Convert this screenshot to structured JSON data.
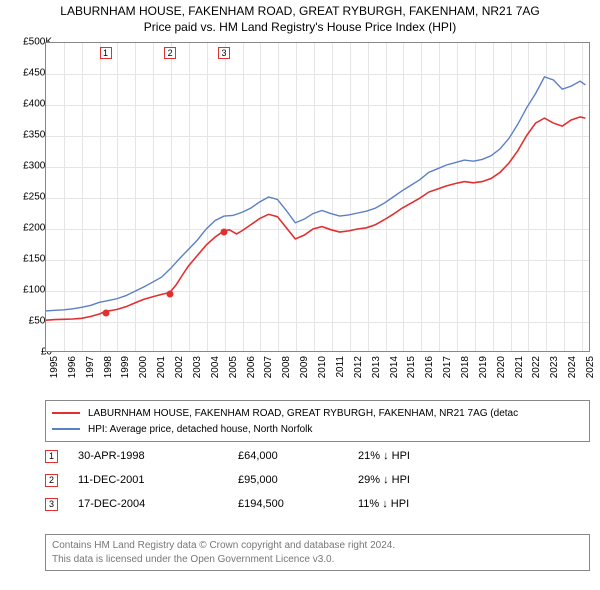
{
  "title": {
    "line1": "LABURNHAM HOUSE, FAKENHAM ROAD, GREAT RYBURGH, FAKENHAM, NR21 7AG",
    "line2": "Price paid vs. HM Land Registry's House Price Index (HPI)"
  },
  "chart": {
    "type": "line",
    "x_min": 1995,
    "x_max": 2025.5,
    "y_min": 0,
    "y_max": 500000,
    "y_ticks": [
      0,
      50000,
      100000,
      150000,
      200000,
      250000,
      300000,
      350000,
      400000,
      450000,
      500000
    ],
    "y_tick_labels": [
      "£0",
      "£50K",
      "£100K",
      "£150K",
      "£200K",
      "£250K",
      "£300K",
      "£350K",
      "£400K",
      "£450K",
      "£500K"
    ],
    "x_ticks": [
      1995,
      1996,
      1997,
      1998,
      1999,
      2000,
      2001,
      2002,
      2003,
      2004,
      2005,
      2006,
      2007,
      2008,
      2009,
      2010,
      2011,
      2012,
      2013,
      2014,
      2015,
      2016,
      2017,
      2018,
      2019,
      2020,
      2021,
      2022,
      2023,
      2024,
      2025
    ],
    "background_color": "#ffffff",
    "grid_color": "#e5e5e5",
    "border_color": "#888888",
    "series": [
      {
        "name": "property",
        "label": "LABURNHAM HOUSE, FAKENHAM ROAD, GREAT RYBURGH, FAKENHAM, NR21 7AG (detac",
        "color": "#e03030",
        "width": 1.6,
        "points": [
          [
            1995.0,
            50000
          ],
          [
            1995.5,
            51000
          ],
          [
            1996.0,
            51500
          ],
          [
            1996.5,
            52000
          ],
          [
            1997.0,
            53000
          ],
          [
            1997.5,
            56000
          ],
          [
            1998.0,
            60000
          ],
          [
            1998.33,
            64000
          ],
          [
            1998.7,
            66000
          ],
          [
            1999.0,
            67500
          ],
          [
            1999.5,
            72000
          ],
          [
            2000.0,
            78000
          ],
          [
            2000.5,
            84000
          ],
          [
            2001.0,
            88000
          ],
          [
            2001.5,
            92000
          ],
          [
            2001.95,
            95000
          ],
          [
            2002.3,
            107000
          ],
          [
            2002.7,
            125000
          ],
          [
            2003.0,
            138000
          ],
          [
            2003.5,
            155000
          ],
          [
            2004.0,
            172000
          ],
          [
            2004.5,
            185000
          ],
          [
            2004.96,
            194500
          ],
          [
            2005.3,
            197000
          ],
          [
            2005.7,
            190000
          ],
          [
            2006.0,
            195000
          ],
          [
            2006.5,
            205000
          ],
          [
            2007.0,
            215000
          ],
          [
            2007.5,
            222000
          ],
          [
            2008.0,
            218000
          ],
          [
            2008.5,
            200000
          ],
          [
            2009.0,
            182000
          ],
          [
            2009.5,
            188000
          ],
          [
            2010.0,
            198000
          ],
          [
            2010.5,
            202000
          ],
          [
            2011.0,
            197000
          ],
          [
            2011.5,
            193000
          ],
          [
            2012.0,
            195000
          ],
          [
            2012.5,
            198000
          ],
          [
            2013.0,
            200000
          ],
          [
            2013.5,
            205000
          ],
          [
            2014.0,
            213000
          ],
          [
            2014.5,
            222000
          ],
          [
            2015.0,
            232000
          ],
          [
            2015.5,
            240000
          ],
          [
            2016.0,
            248000
          ],
          [
            2016.5,
            258000
          ],
          [
            2017.0,
            263000
          ],
          [
            2017.5,
            268000
          ],
          [
            2018.0,
            272000
          ],
          [
            2018.5,
            275000
          ],
          [
            2019.0,
            273000
          ],
          [
            2019.5,
            275000
          ],
          [
            2020.0,
            280000
          ],
          [
            2020.5,
            290000
          ],
          [
            2021.0,
            305000
          ],
          [
            2021.5,
            325000
          ],
          [
            2022.0,
            350000
          ],
          [
            2022.5,
            370000
          ],
          [
            2023.0,
            378000
          ],
          [
            2023.5,
            370000
          ],
          [
            2024.0,
            365000
          ],
          [
            2024.5,
            375000
          ],
          [
            2025.0,
            380000
          ],
          [
            2025.3,
            378000
          ]
        ]
      },
      {
        "name": "hpi",
        "label": "HPI: Average price, detached house, North Norfolk",
        "color": "#5b7fc7",
        "width": 1.4,
        "points": [
          [
            1995.0,
            65000
          ],
          [
            1995.5,
            66000
          ],
          [
            1996.0,
            67000
          ],
          [
            1996.5,
            68500
          ],
          [
            1997.0,
            71000
          ],
          [
            1997.5,
            74000
          ],
          [
            1998.0,
            79000
          ],
          [
            1998.5,
            82000
          ],
          [
            1999.0,
            85000
          ],
          [
            1999.5,
            90000
          ],
          [
            2000.0,
            97000
          ],
          [
            2000.5,
            104000
          ],
          [
            2001.0,
            112000
          ],
          [
            2001.5,
            120000
          ],
          [
            2002.0,
            134000
          ],
          [
            2002.5,
            150000
          ],
          [
            2003.0,
            165000
          ],
          [
            2003.5,
            180000
          ],
          [
            2004.0,
            198000
          ],
          [
            2004.5,
            212000
          ],
          [
            2005.0,
            219000
          ],
          [
            2005.5,
            220000
          ],
          [
            2006.0,
            225000
          ],
          [
            2006.5,
            232000
          ],
          [
            2007.0,
            242000
          ],
          [
            2007.5,
            250000
          ],
          [
            2008.0,
            246000
          ],
          [
            2008.5,
            228000
          ],
          [
            2009.0,
            208000
          ],
          [
            2009.5,
            214000
          ],
          [
            2010.0,
            223000
          ],
          [
            2010.5,
            228000
          ],
          [
            2011.0,
            223000
          ],
          [
            2011.5,
            219000
          ],
          [
            2012.0,
            221000
          ],
          [
            2012.5,
            224000
          ],
          [
            2013.0,
            227000
          ],
          [
            2013.5,
            232000
          ],
          [
            2014.0,
            240000
          ],
          [
            2014.5,
            250000
          ],
          [
            2015.0,
            260000
          ],
          [
            2015.5,
            269000
          ],
          [
            2016.0,
            278000
          ],
          [
            2016.5,
            290000
          ],
          [
            2017.0,
            296000
          ],
          [
            2017.5,
            302000
          ],
          [
            2018.0,
            306000
          ],
          [
            2018.5,
            310000
          ],
          [
            2019.0,
            308000
          ],
          [
            2019.5,
            311000
          ],
          [
            2020.0,
            317000
          ],
          [
            2020.5,
            328000
          ],
          [
            2021.0,
            345000
          ],
          [
            2021.5,
            368000
          ],
          [
            2022.0,
            395000
          ],
          [
            2022.5,
            418000
          ],
          [
            2023.0,
            445000
          ],
          [
            2023.5,
            440000
          ],
          [
            2024.0,
            425000
          ],
          [
            2024.5,
            430000
          ],
          [
            2025.0,
            438000
          ],
          [
            2025.3,
            432000
          ]
        ]
      }
    ],
    "sale_markers": [
      {
        "n": "1",
        "x": 1998.33,
        "y": 64000
      },
      {
        "n": "2",
        "x": 2001.95,
        "y": 95000
      },
      {
        "n": "3",
        "x": 2004.96,
        "y": 194500
      }
    ]
  },
  "legend": {
    "items": [
      {
        "color": "#e03030",
        "label": "LABURNHAM HOUSE, FAKENHAM ROAD, GREAT RYBURGH, FAKENHAM, NR21 7AG (detac"
      },
      {
        "color": "#5b7fc7",
        "label": "HPI: Average price, detached house, North Norfolk"
      }
    ]
  },
  "sales": [
    {
      "n": "1",
      "date": "30-APR-1998",
      "price": "£64,000",
      "diff": "21% ↓ HPI"
    },
    {
      "n": "2",
      "date": "11-DEC-2001",
      "price": "£95,000",
      "diff": "29% ↓ HPI"
    },
    {
      "n": "3",
      "date": "17-DEC-2004",
      "price": "£194,500",
      "diff": "11% ↓ HPI"
    }
  ],
  "footer": {
    "line1": "Contains HM Land Registry data © Crown copyright and database right 2024.",
    "line2": "This data is licensed under the Open Government Licence v3.0."
  }
}
